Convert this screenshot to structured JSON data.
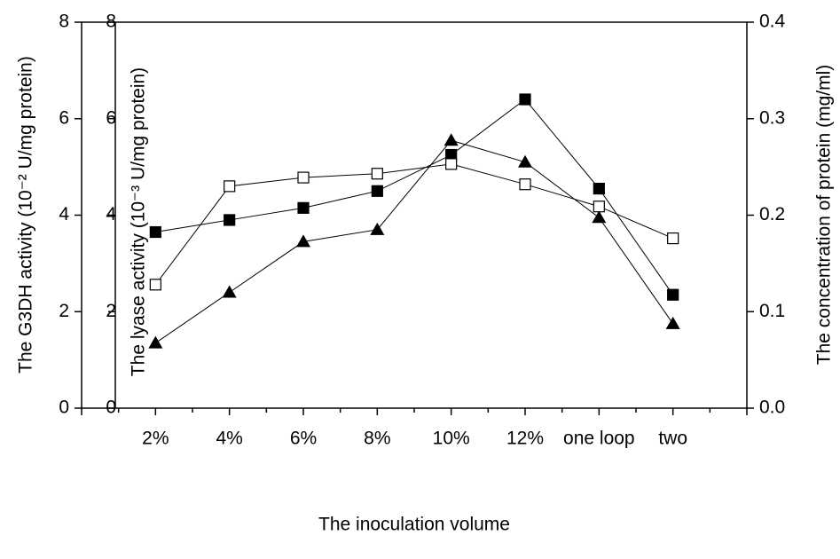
{
  "chart_data": {
    "type": "line",
    "x_label": "The inoculation volume",
    "y_label": "The G3DH activity (10⁻² U/mg protein)",
    "y2_label": "The lyase activity (10⁻³ U/mg protein)",
    "y3_label": "The concentration of protein (mg/ml)",
    "categories": [
      "2%",
      "4%",
      "6%",
      "8%",
      "10%",
      "12%",
      "one loop",
      "two"
    ],
    "ylim": [
      0,
      8
    ],
    "yticks": [
      0,
      2,
      4,
      6,
      8
    ],
    "y2lim": [
      0,
      8
    ],
    "y2ticks": [
      0,
      2,
      4,
      6,
      8
    ],
    "y3lim": [
      0,
      0.4
    ],
    "y3ticks": [
      {
        "value": 0,
        "label": "0.0"
      },
      0.1,
      0.2,
      0.3,
      0.4
    ],
    "series": [
      {
        "color": "#000000",
        "marker": "square",
        "axis": "y",
        "values": [
          3.65,
          3.9,
          4.15,
          4.5,
          5.25,
          6.4,
          4.55,
          2.35
        ]
      },
      {
        "color": "#000000",
        "marker": "triangle",
        "axis": "y2",
        "values": [
          1.35,
          2.4,
          3.45,
          3.7,
          5.55,
          5.1,
          3.95,
          1.75
        ]
      },
      {
        "color": "#000000",
        "marker": "open-square",
        "axis": "y3",
        "values": [
          0.128,
          0.23,
          0.239,
          0.243,
          0.253,
          0.232,
          0.209,
          0.176
        ]
      }
    ]
  }
}
